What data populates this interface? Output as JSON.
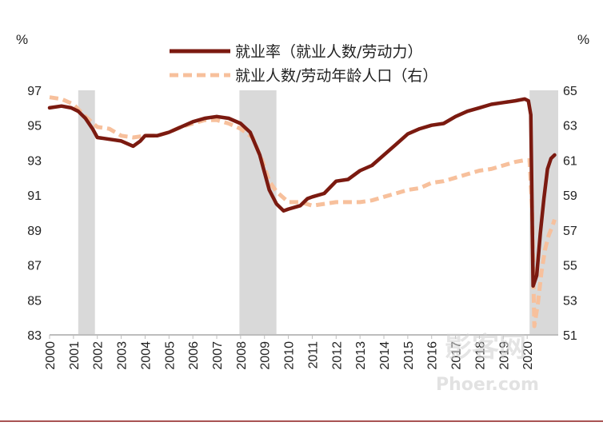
{
  "chart_data": {
    "type": "line",
    "left_unit": "%",
    "right_unit": "%",
    "left_axis": {
      "ylim": [
        83,
        97
      ],
      "ticks": [
        83,
        85,
        87,
        89,
        91,
        93,
        95,
        97
      ]
    },
    "right_axis": {
      "ylim": [
        51,
        65
      ],
      "ticks": [
        51,
        53,
        55,
        57,
        59,
        61,
        63,
        65
      ]
    },
    "x_axis": {
      "xlim": [
        2000,
        2021.3
      ],
      "ticks": [
        "2000",
        "2001",
        "2002",
        "2003",
        "2004",
        "2005",
        "2006",
        "2007",
        "2008",
        "2009",
        "2010",
        "2011",
        "2012",
        "2013",
        "2014",
        "2015",
        "2016",
        "2017",
        "2018",
        "2019",
        "2020"
      ]
    },
    "recession_shading": [
      [
        2001.2,
        2001.9
      ],
      [
        2007.95,
        2009.5
      ],
      [
        2020.1,
        2021.3
      ]
    ],
    "legend_position": "top-center",
    "series": [
      {
        "name": "就业率（就业人数/劳动力）",
        "axis": "left",
        "color": "#7b1a10",
        "points": [
          [
            2000,
            96.0
          ],
          [
            2000.5,
            96.1
          ],
          [
            2000.9,
            96.0
          ],
          [
            2001.2,
            95.8
          ],
          [
            2001.5,
            95.4
          ],
          [
            2001.8,
            94.8
          ],
          [
            2002,
            94.3
          ],
          [
            2002.5,
            94.2
          ],
          [
            2003,
            94.1
          ],
          [
            2003.5,
            93.8
          ],
          [
            2003.8,
            94.1
          ],
          [
            2004,
            94.4
          ],
          [
            2004.5,
            94.4
          ],
          [
            2005,
            94.6
          ],
          [
            2005.5,
            94.9
          ],
          [
            2006,
            95.2
          ],
          [
            2006.5,
            95.4
          ],
          [
            2007,
            95.5
          ],
          [
            2007.5,
            95.4
          ],
          [
            2008,
            95.1
          ],
          [
            2008.4,
            94.6
          ],
          [
            2008.8,
            93.3
          ],
          [
            2009.2,
            91.3
          ],
          [
            2009.5,
            90.5
          ],
          [
            2009.8,
            90.1
          ],
          [
            2010,
            90.2
          ],
          [
            2010.5,
            90.4
          ],
          [
            2010.8,
            90.8
          ],
          [
            2011,
            90.9
          ],
          [
            2011.5,
            91.1
          ],
          [
            2012,
            91.8
          ],
          [
            2012.5,
            91.9
          ],
          [
            2013,
            92.4
          ],
          [
            2013.5,
            92.7
          ],
          [
            2014,
            93.3
          ],
          [
            2014.5,
            93.9
          ],
          [
            2015,
            94.5
          ],
          [
            2015.5,
            94.8
          ],
          [
            2016,
            95.0
          ],
          [
            2016.5,
            95.1
          ],
          [
            2017,
            95.5
          ],
          [
            2017.5,
            95.8
          ],
          [
            2018,
            96.0
          ],
          [
            2018.5,
            96.2
          ],
          [
            2019,
            96.3
          ],
          [
            2019.5,
            96.4
          ],
          [
            2019.9,
            96.5
          ],
          [
            2020.05,
            96.4
          ],
          [
            2020.15,
            95.6
          ],
          [
            2020.25,
            85.8
          ],
          [
            2020.4,
            86.4
          ],
          [
            2020.55,
            88.8
          ],
          [
            2020.7,
            90.8
          ],
          [
            2020.85,
            92.5
          ],
          [
            2021,
            93.1
          ],
          [
            2021.15,
            93.3
          ]
        ]
      },
      {
        "name": "就业人数/劳动年龄人口（右）",
        "axis": "right",
        "color": "#f7c09c",
        "points": [
          [
            2000,
            64.6
          ],
          [
            2000.5,
            64.5
          ],
          [
            2001,
            64.2
          ],
          [
            2001.5,
            63.5
          ],
          [
            2002,
            62.9
          ],
          [
            2002.5,
            62.8
          ],
          [
            2003,
            62.4
          ],
          [
            2003.5,
            62.3
          ],
          [
            2004,
            62.4
          ],
          [
            2004.5,
            62.4
          ],
          [
            2005,
            62.6
          ],
          [
            2005.5,
            62.9
          ],
          [
            2006,
            63.1
          ],
          [
            2006.5,
            63.3
          ],
          [
            2007,
            63.3
          ],
          [
            2007.5,
            63.1
          ],
          [
            2008,
            62.8
          ],
          [
            2008.5,
            62.3
          ],
          [
            2008.9,
            61.0
          ],
          [
            2009.2,
            59.8
          ],
          [
            2009.5,
            59.2
          ],
          [
            2010,
            58.6
          ],
          [
            2010.5,
            58.6
          ],
          [
            2011,
            58.4
          ],
          [
            2011.5,
            58.5
          ],
          [
            2012,
            58.6
          ],
          [
            2012.5,
            58.6
          ],
          [
            2013,
            58.6
          ],
          [
            2013.5,
            58.7
          ],
          [
            2014,
            58.9
          ],
          [
            2014.5,
            59.1
          ],
          [
            2015,
            59.3
          ],
          [
            2015.5,
            59.4
          ],
          [
            2016,
            59.7
          ],
          [
            2016.5,
            59.8
          ],
          [
            2017,
            60.0
          ],
          [
            2017.5,
            60.2
          ],
          [
            2018,
            60.4
          ],
          [
            2018.5,
            60.5
          ],
          [
            2019,
            60.7
          ],
          [
            2019.5,
            60.9
          ],
          [
            2019.9,
            61.0
          ],
          [
            2020.1,
            61.0
          ],
          [
            2020.2,
            58.3
          ],
          [
            2020.3,
            51.5
          ],
          [
            2020.45,
            52.8
          ],
          [
            2020.6,
            54.6
          ],
          [
            2020.75,
            55.9
          ],
          [
            2020.9,
            56.7
          ],
          [
            2021.05,
            57.2
          ],
          [
            2021.15,
            57.6
          ]
        ]
      }
    ]
  },
  "watermark": {
    "main": "影客网",
    "sub": "Phoer.com"
  }
}
